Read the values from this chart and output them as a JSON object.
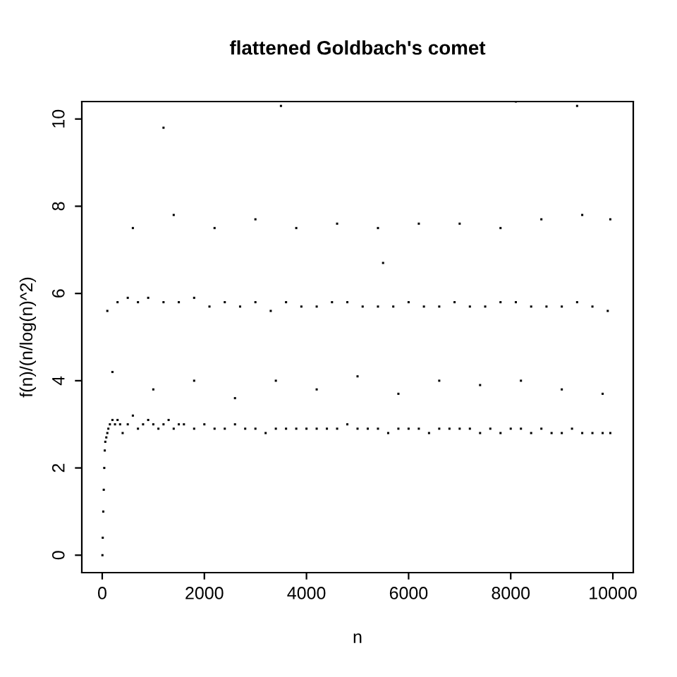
{
  "chart_data": {
    "type": "scatter",
    "title": "flattened Goldbach's comet",
    "xlabel": "n",
    "ylabel": "f(n)/(n/log(n)^2)",
    "x": [
      4,
      10,
      20,
      30,
      40,
      50,
      60,
      80,
      100,
      120,
      150,
      200,
      250,
      300,
      350,
      400,
      500,
      600,
      700,
      800,
      900,
      1000,
      1100,
      1200,
      1300,
      1400,
      1500,
      1600,
      1800,
      2000,
      2200,
      2400,
      2600,
      2800,
      3000,
      3200,
      3400,
      3600,
      3800,
      4000,
      4200,
      4400,
      4600,
      4800,
      5000,
      5200,
      5400,
      5600,
      5800,
      6000,
      6200,
      6400,
      6600,
      6800,
      7000,
      7200,
      7400,
      7600,
      7800,
      8000,
      8200,
      8400,
      8600,
      8800,
      9000,
      9200,
      9400,
      9600,
      9800,
      9950,
      100,
      300,
      500,
      700,
      900,
      1200,
      1500,
      1800,
      2100,
      2400,
      2700,
      3000,
      3300,
      3600,
      3900,
      4200,
      4500,
      4800,
      5100,
      5400,
      5700,
      6000,
      6300,
      6600,
      6900,
      7200,
      7500,
      7800,
      8100,
      8400,
      8700,
      9000,
      9300,
      9600,
      9900,
      200,
      600,
      1000,
      1400,
      1800,
      2200,
      2600,
      3000,
      3400,
      3800,
      4200,
      4600,
      5000,
      5400,
      5800,
      6200,
      6600,
      7000,
      7400,
      7800,
      8200,
      8600,
      9000,
      9400,
      9800,
      9950,
      3500,
      8100,
      9300,
      1200,
      5500
    ],
    "values": [
      0,
      0.4,
      1.0,
      1.5,
      2.0,
      2.4,
      2.6,
      2.7,
      2.8,
      2.9,
      3.0,
      3.1,
      3.0,
      3.1,
      3.0,
      2.8,
      3.0,
      3.2,
      2.9,
      3.0,
      3.1,
      3.0,
      2.9,
      3.0,
      3.1,
      2.9,
      3.0,
      3.0,
      2.9,
      3.0,
      2.9,
      2.9,
      3.0,
      2.9,
      2.9,
      2.8,
      2.9,
      2.9,
      2.9,
      2.9,
      2.9,
      2.9,
      2.9,
      3.0,
      2.9,
      2.9,
      2.9,
      2.8,
      2.9,
      2.9,
      2.9,
      2.8,
      2.9,
      2.9,
      2.9,
      2.9,
      2.8,
      2.9,
      2.8,
      2.9,
      2.9,
      2.8,
      2.9,
      2.8,
      2.8,
      2.9,
      2.8,
      2.8,
      2.8,
      2.8,
      5.6,
      5.8,
      5.9,
      5.8,
      5.9,
      5.8,
      5.8,
      5.9,
      5.7,
      5.8,
      5.7,
      5.8,
      5.6,
      5.8,
      5.7,
      5.7,
      5.8,
      5.8,
      5.7,
      5.7,
      5.7,
      5.8,
      5.7,
      5.7,
      5.8,
      5.7,
      5.7,
      5.8,
      5.8,
      5.7,
      5.7,
      5.7,
      5.8,
      5.7,
      5.6,
      4.2,
      7.5,
      3.8,
      7.8,
      4.0,
      7.5,
      3.6,
      7.7,
      4.0,
      7.5,
      3.8,
      7.6,
      4.1,
      7.5,
      3.7,
      7.6,
      4.0,
      7.6,
      3.9,
      7.5,
      4.0,
      7.7,
      3.8,
      7.8,
      3.7,
      7.7,
      10.3,
      10.4,
      10.3,
      9.8,
      6.7
    ],
    "color": "#000000",
    "marker": "square",
    "xlim": [
      -400,
      10400
    ],
    "ylim": [
      -0.4,
      10.4
    ],
    "xticks": [
      0,
      2000,
      4000,
      6000,
      8000,
      10000
    ],
    "yticks": [
      0,
      2,
      4,
      6,
      8,
      10
    ],
    "grid": false,
    "legend": false
  }
}
